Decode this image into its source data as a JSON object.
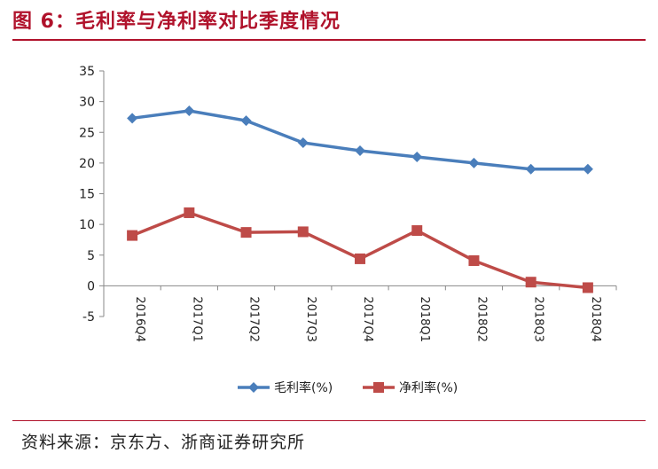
{
  "figure": {
    "title": "图 6：毛利率与净利率对比季度情况",
    "source": "资料来源：京东方、浙商证券研究所"
  },
  "chart_data": {
    "type": "line",
    "categories": [
      "2016Q4",
      "2017Q1",
      "2017Q2",
      "2017Q3",
      "2017Q4",
      "2018Q1",
      "2018Q2",
      "2018Q3",
      "2018Q4"
    ],
    "series": [
      {
        "name": "毛利率(%)",
        "values": [
          27.3,
          28.5,
          26.9,
          23.3,
          22.0,
          21.0,
          20.0,
          19.0,
          19.0
        ],
        "color": "#4a7ebb",
        "marker": "diamond"
      },
      {
        "name": "净利率(%)",
        "values": [
          8.2,
          11.9,
          8.7,
          8.8,
          4.4,
          9.0,
          4.1,
          0.6,
          -0.3
        ],
        "color": "#be4b48",
        "marker": "square"
      }
    ],
    "yticks": [
      35,
      30,
      25,
      20,
      15,
      10,
      5,
      0,
      -5
    ],
    "ylim": [
      -5,
      35
    ],
    "legend": "bottom"
  }
}
